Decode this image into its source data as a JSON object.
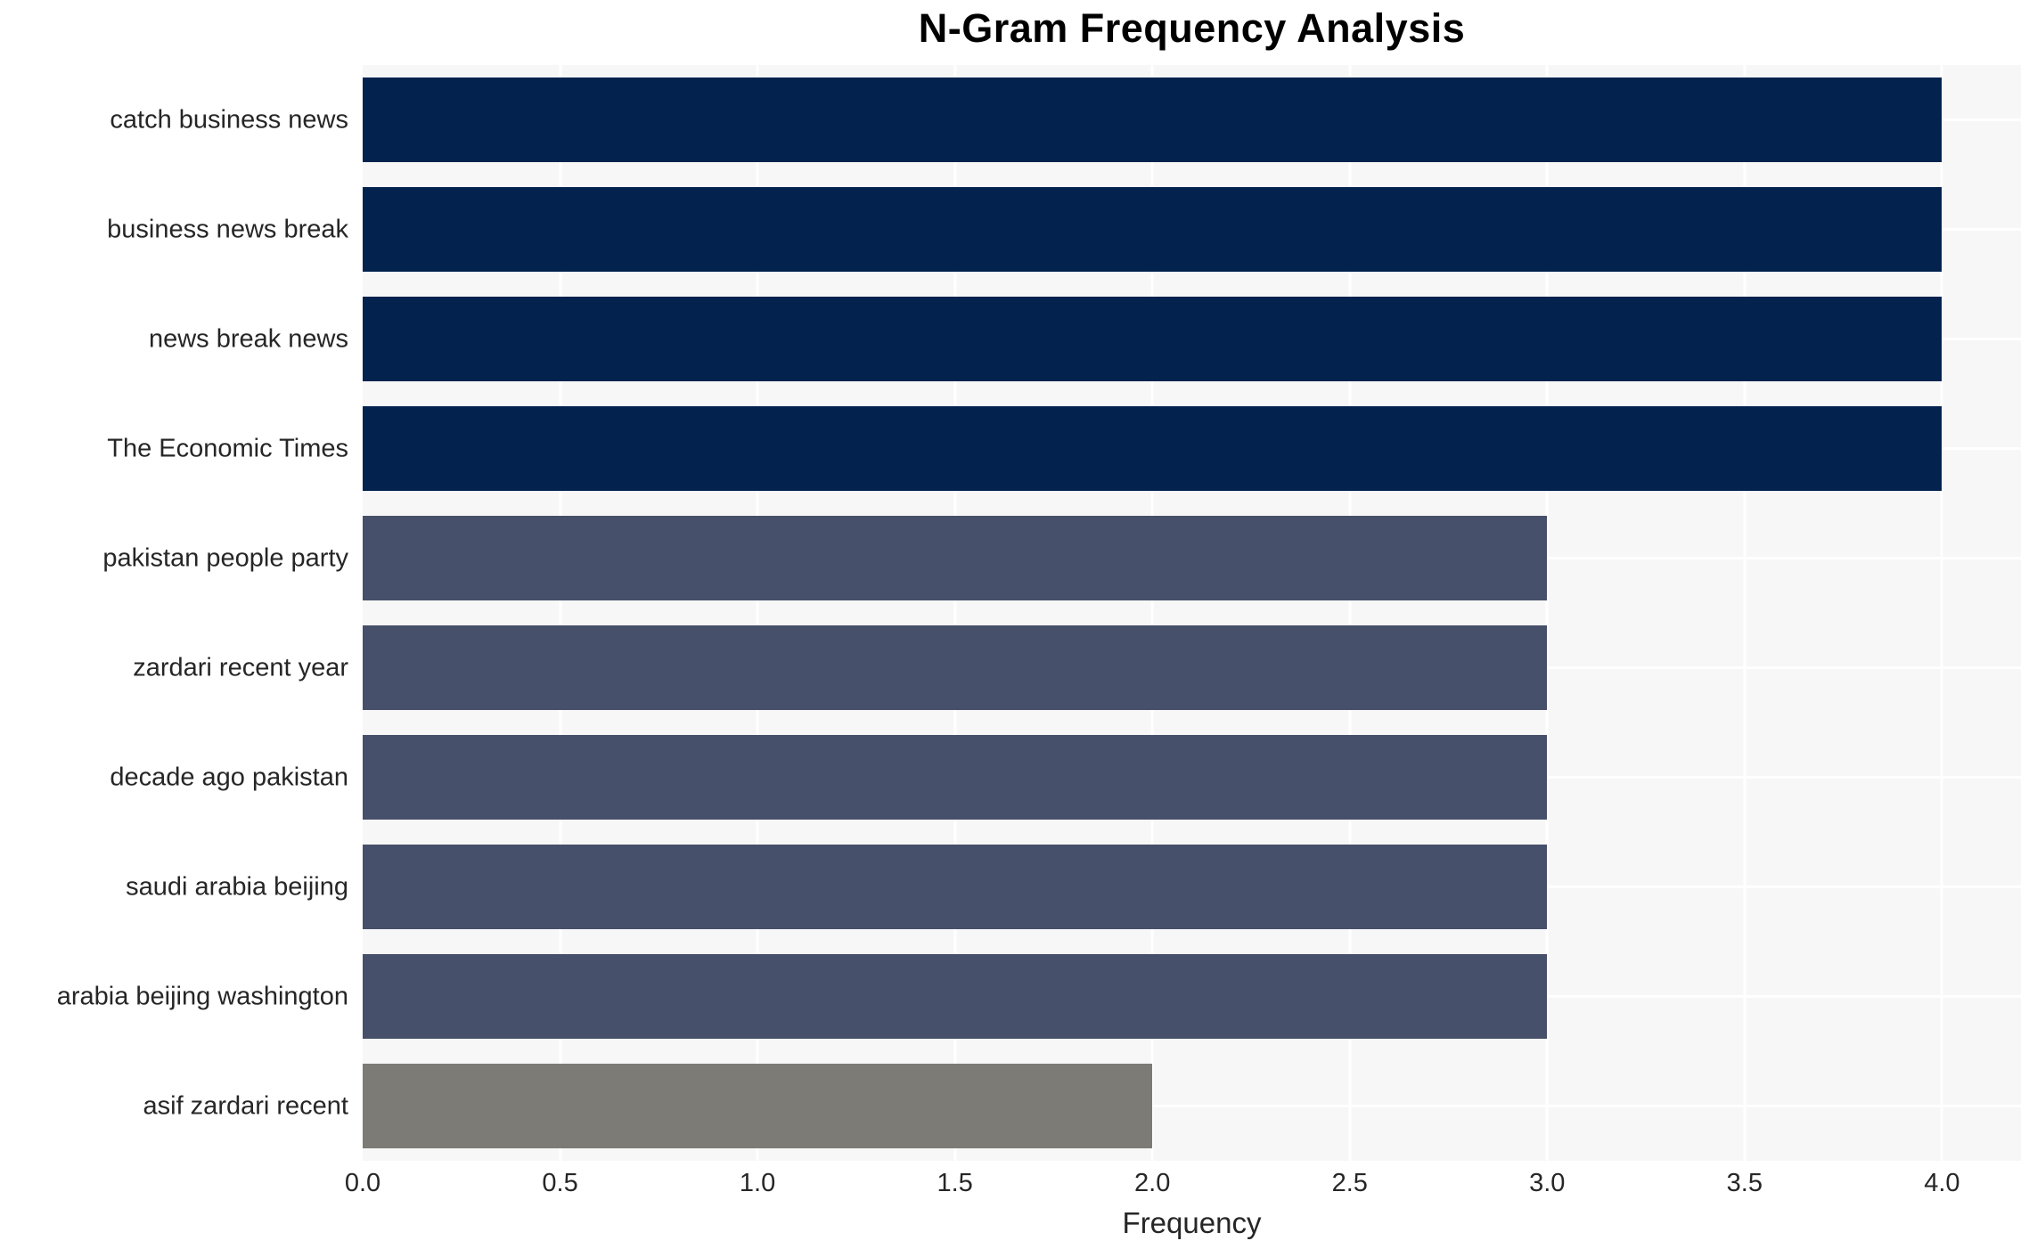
{
  "chart_data": {
    "type": "bar",
    "orientation": "horizontal",
    "title": "N-Gram Frequency Analysis",
    "xlabel": "Frequency",
    "ylabel": "",
    "categories": [
      "catch business news",
      "business news break",
      "news break news",
      "The Economic Times",
      "pakistan people party",
      "zardari recent year",
      "decade ago pakistan",
      "saudi arabia beijing",
      "arabia beijing washington",
      "asif zardari recent"
    ],
    "values": [
      4,
      4,
      4,
      4,
      3,
      3,
      3,
      3,
      3,
      2
    ],
    "bar_colors": [
      "#03224E",
      "#03224E",
      "#03224E",
      "#03224E",
      "#47506A",
      "#47506A",
      "#47506A",
      "#47506A",
      "#47506A",
      "#7C7B75"
    ],
    "xlim": [
      0,
      4.2
    ],
    "xticks": [
      {
        "value": 0.0,
        "label": "0.0"
      },
      {
        "value": 0.5,
        "label": "0.5"
      },
      {
        "value": 1.0,
        "label": "1.0"
      },
      {
        "value": 1.5,
        "label": "1.5"
      },
      {
        "value": 2.0,
        "label": "2.0"
      },
      {
        "value": 2.5,
        "label": "2.5"
      },
      {
        "value": 3.0,
        "label": "3.0"
      },
      {
        "value": 3.5,
        "label": "3.5"
      },
      {
        "value": 4.0,
        "label": "4.0"
      }
    ],
    "grid": true,
    "plot_background": "#F7F7F7",
    "gridline_color": "#FFFFFF",
    "text_color": "#262626"
  }
}
